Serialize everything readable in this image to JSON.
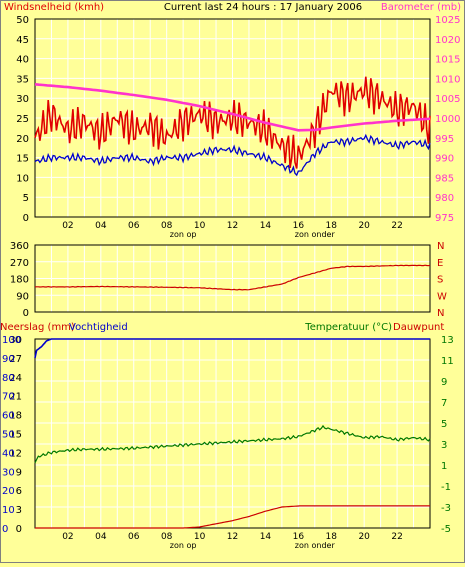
{
  "header": {
    "left_label": "Windsnelheid (kmh)",
    "center_title": "Current last 24 hours : 17 January 2006",
    "right_label": "Barometer (mb)"
  },
  "colors": {
    "background": "#ffff99",
    "wind_gust": "#e00000",
    "wind_avg": "#0000cc",
    "barometer": "#ff33cc",
    "direction": "#cc0000",
    "temperature": "#007700",
    "dewpoint": "#cc0000",
    "humidity": "#0000cc",
    "rain": "#cc0000",
    "grid": "#ffffff"
  },
  "chart_data": [
    {
      "type": "line",
      "panel": "wind-barometer",
      "x_range": [
        0,
        24
      ],
      "x_ticks": [
        "02",
        "04",
        "06",
        "08",
        "10",
        "12",
        "14",
        "16",
        "18",
        "20",
        "22"
      ],
      "x_markers": [
        {
          "label": "zon op",
          "x": 9
        },
        {
          "label": "zon onder",
          "x": 17
        }
      ],
      "y_left": {
        "label": "Windsnelheid (kmh)",
        "range": [
          0,
          50
        ],
        "ticks": [
          0,
          5,
          10,
          15,
          20,
          25,
          30,
          35,
          40,
          45,
          50
        ]
      },
      "y_right": {
        "label": "Barometer (mb)",
        "range": [
          975,
          1025
        ],
        "ticks": [
          975,
          980,
          985,
          990,
          995,
          1000,
          1005,
          1010,
          1015,
          1020,
          1025
        ]
      },
      "series": [
        {
          "key": "gust",
          "axis": "left",
          "color": "#e00000",
          "x": [
            0,
            1,
            2,
            3,
            4,
            5,
            6,
            7,
            8,
            9,
            10,
            11,
            12,
            13,
            14,
            15,
            16,
            17,
            18,
            19,
            20,
            21,
            22,
            23,
            24
          ],
          "values": [
            20,
            26,
            22,
            24,
            21,
            25,
            22,
            23,
            20,
            24,
            26,
            24,
            25,
            24,
            22,
            18,
            15,
            22,
            32,
            30,
            32,
            30,
            27,
            28,
            22
          ]
        },
        {
          "key": "average",
          "axis": "left",
          "color": "#0000cc",
          "x": [
            0,
            1,
            2,
            3,
            4,
            5,
            6,
            7,
            8,
            9,
            10,
            11,
            12,
            13,
            14,
            15,
            16,
            17,
            18,
            19,
            20,
            21,
            22,
            23,
            24
          ],
          "values": [
            14,
            15,
            15,
            15,
            14,
            15,
            15,
            14,
            15,
            15,
            16,
            17,
            17,
            16,
            15,
            13,
            11,
            16,
            19,
            19,
            20,
            19,
            18,
            19,
            18
          ]
        },
        {
          "key": "barometer",
          "axis": "right",
          "color": "#ff33cc",
          "x": [
            0,
            2,
            4,
            6,
            8,
            10,
            12,
            14,
            16,
            17,
            18,
            20,
            22,
            24
          ],
          "values": [
            1008.5,
            1007.8,
            1006.9,
            1005.8,
            1004.6,
            1003.0,
            1001.0,
            998.8,
            996.9,
            997.0,
            997.6,
            998.6,
            999.3,
            999.8
          ]
        }
      ]
    },
    {
      "type": "line",
      "panel": "wind-direction",
      "x_range": [
        0,
        24
      ],
      "x_ticks": [
        "02",
        "04",
        "06",
        "08",
        "10",
        "12",
        "14",
        "16",
        "18",
        "20",
        "22"
      ],
      "y_left": {
        "label": "",
        "range": [
          0,
          360
        ],
        "ticks": [
          0,
          90,
          180,
          270,
          360
        ]
      },
      "y_right": {
        "label": "",
        "range": [
          0,
          360
        ],
        "ticks": [
          "N",
          "W",
          "S",
          "E",
          "N"
        ]
      },
      "series": [
        {
          "key": "direction",
          "axis": "left",
          "color": "#cc0000",
          "x": [
            0,
            2,
            4,
            6,
            8,
            10,
            12,
            13,
            14,
            15,
            16,
            17,
            18,
            19,
            20,
            22,
            24
          ],
          "values": [
            135,
            135,
            137,
            135,
            133,
            130,
            120,
            120,
            135,
            150,
            185,
            210,
            235,
            245,
            245,
            250,
            250
          ]
        }
      ]
    },
    {
      "type": "line",
      "panel": "rain-humidity-temperature",
      "x_range": [
        0,
        24
      ],
      "x_ticks": [
        "02",
        "04",
        "06",
        "08",
        "10",
        "12",
        "14",
        "16",
        "18",
        "20",
        "22"
      ],
      "x_markers": [
        {
          "label": "zon op",
          "x": 9
        },
        {
          "label": "zon onder",
          "x": 17
        }
      ],
      "left_title_rain": "Neerslag (mm)",
      "left_title_humidity": "Vochtigheid",
      "right_title_temp": "Temperatuur (°C)",
      "right_title_dew": "Dauwpunt",
      "y_left_rain": {
        "range": [
          0,
          30
        ],
        "ticks": [
          0,
          3,
          6,
          9,
          12,
          15,
          18,
          21,
          24,
          27,
          30
        ]
      },
      "y_left_humidity": {
        "range": [
          0,
          100
        ],
        "ticks": [
          0,
          10,
          20,
          30,
          40,
          50,
          60,
          70,
          80,
          90,
          100
        ]
      },
      "y_right": {
        "range": [
          -5,
          13
        ],
        "ticks": [
          -5,
          -3,
          -1,
          1,
          3,
          5,
          7,
          9,
          11,
          13
        ]
      },
      "series": [
        {
          "key": "temperature",
          "axis": "right",
          "color": "#007700",
          "x": [
            0,
            0.2,
            1,
            2,
            3,
            4,
            6,
            8,
            10,
            12,
            14,
            15,
            16,
            17,
            17.5,
            18,
            19,
            20,
            21,
            22,
            23,
            24
          ],
          "values": [
            1.2,
            1.8,
            2.2,
            2.4,
            2.5,
            2.5,
            2.6,
            2.8,
            3.0,
            3.2,
            3.4,
            3.5,
            3.7,
            4.3,
            4.6,
            4.4,
            4.0,
            3.6,
            3.7,
            3.4,
            3.6,
            3.4
          ]
        },
        {
          "key": "dewpoint",
          "axis": "right",
          "color": "#cc0000",
          "x": [
            0,
            6,
            9,
            10,
            11,
            12,
            13,
            14,
            15,
            16,
            24
          ],
          "values": [
            -5,
            -5,
            -5,
            -4.9,
            -4.6,
            -4.3,
            -3.9,
            -3.4,
            -3.0,
            -2.9,
            -2.9
          ]
        },
        {
          "key": "humidity",
          "axis": "left_humidity",
          "color": "#0000cc",
          "x": [
            0,
            0.1,
            0.4,
            0.5,
            0.7,
            1,
            24
          ],
          "values": [
            90,
            94,
            96,
            97,
            99,
            100,
            100
          ]
        }
      ]
    }
  ]
}
